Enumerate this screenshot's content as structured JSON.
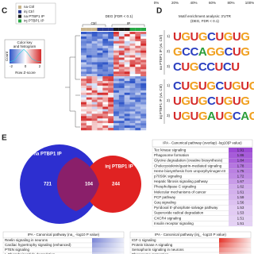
{
  "top_axis": [
    "0%",
    "20%",
    "40%",
    "60%",
    "80%",
    "100%"
  ],
  "panel_c": {
    "letter": "C",
    "legend": [
      {
        "label": "na Ctrl",
        "color": "#c8b58e"
      },
      {
        "label": "inj Ctrl",
        "color": "#2a3a8f"
      },
      {
        "label": "na PTBP1 IP",
        "color": "#1b1b1b"
      },
      {
        "label": "inj PTBP1 IP",
        "color": "#27a844"
      }
    ],
    "deg": "DEG (FDR < 0.1)",
    "groups": [
      "Ctrl",
      "IP"
    ],
    "color_key": "Color key",
    "color_key2": "and histogram",
    "count": "Count",
    "z_label": "Row Z-score",
    "z_ticks": [
      "-2",
      "0",
      "2"
    ]
  },
  "panel_d": {
    "letter": "D",
    "title": "Motif enrichment analysis: 3'UTR",
    "subtitle": "(DEG, FDR < 0.1)",
    "groups": [
      {
        "label": "na PTBP1 IP (vs. Ctrl)",
        "motifs": [
          {
            "n": "1)",
            "seq": "UGUGCUGUG"
          },
          {
            "n": "2)",
            "seq": "GCCAGGCUG"
          },
          {
            "n": "3)",
            "seq": "CUGCCUCU"
          }
        ]
      },
      {
        "label": "inj PTBP1 IP (vs. Ctrl)",
        "motifs": [
          {
            "n": "1)",
            "seq": "CUGUGCUGUG"
          },
          {
            "n": "2)",
            "seq": "UGUGCUGUG"
          },
          {
            "n": "3)",
            "seq": "UGUGAUGCAG"
          }
        ]
      }
    ]
  },
  "panel_e": {
    "letter": "E",
    "venn": {
      "left_label": "na PTBP1 IP",
      "right_label": "inj PTBP1 IP",
      "left_only": "721",
      "overlap": "104",
      "right_only": "244"
    },
    "overlap_table": {
      "title": "IPA - Canonical pathway (overlap) -log10(P value)",
      "rows": [
        [
          "Tec kinase signaling",
          "1.91"
        ],
        [
          "Phagosome formation",
          "1.86"
        ],
        [
          "Glycine degradation (creatine biosynthesis)",
          "1.84"
        ],
        [
          "Cholecystokinin/gastrin-mediated signaling",
          "1.78"
        ],
        [
          "Heme biosynthesis from uroporphyrinogen-III",
          "1.75"
        ],
        [
          "p70S6K signaling",
          "1.72"
        ],
        [
          "Hepatic fibrosis signaling pathway",
          "1.67"
        ],
        [
          "Phospholipase C signaling",
          "1.62"
        ],
        [
          "Molecular mechanisms of cancer",
          "1.61"
        ],
        [
          "PCP pathway",
          "1.59"
        ],
        [
          "Gαq signaling",
          "1.56"
        ],
        [
          "Pyridoxal 5'-phosphate salvage pathway",
          "1.53"
        ],
        [
          "Superoxide radical degradation",
          "1.53"
        ],
        [
          "CXCR4 signaling",
          "1.51"
        ],
        [
          "Insulin receptor signaling",
          "1.51"
        ]
      ]
    },
    "na_table": {
      "title": "IPA - Canonical pathway (na_ -log10 P value)",
      "rows": [
        "Reelin signaling in neurons",
        "Cardiac hypertrophy signaling (enhanced)",
        "PTEN signaling",
        "L-Phosphoinositide degradation"
      ]
    },
    "inj_table": {
      "title": "IPA - Canonical pathway (inj_ -log10 P value)",
      "rows": [
        "IGF-1 signaling",
        "Protein kinase A signaling",
        "Semaphorin signaling in neurons",
        "Phagosome maturation"
      ]
    }
  }
}
